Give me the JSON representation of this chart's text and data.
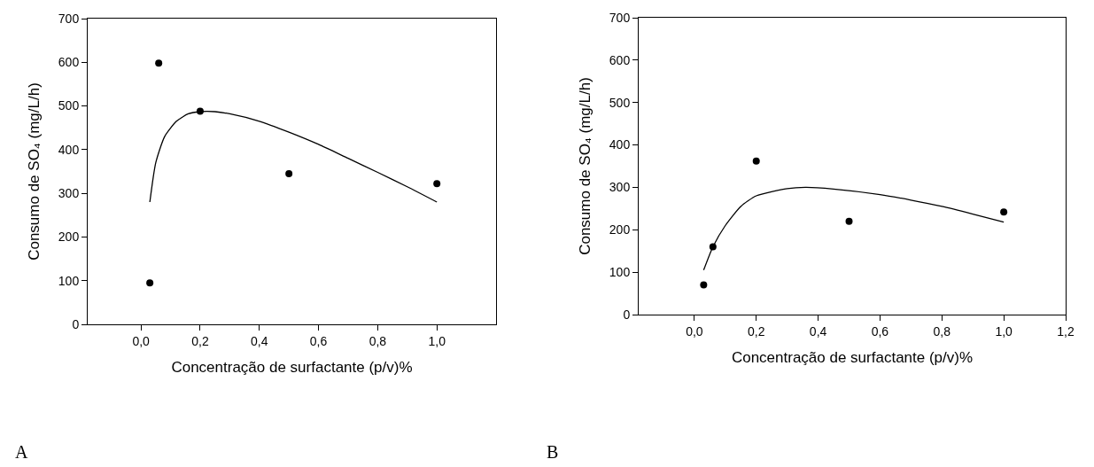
{
  "chart_data": [
    {
      "type": "scatter",
      "xlabel": "Concentração de surfactante (p/v)%",
      "ylabel": "Consumo de SO₄ (mg/L/h)",
      "xlim": [
        -0.18,
        1.2
      ],
      "xticks": [
        {
          "value": 0,
          "label": "0,0"
        },
        {
          "value": 0.2,
          "label": "0,2"
        },
        {
          "value": 0.4,
          "label": "0,4"
        },
        {
          "value": 0.6,
          "label": "0,6"
        },
        {
          "value": 0.8,
          "label": "0,8"
        },
        {
          "value": 1.0,
          "label": "1,0"
        }
      ],
      "ylim": [
        0,
        700
      ],
      "yticks": [
        0,
        100,
        200,
        300,
        400,
        500,
        600,
        700
      ],
      "grid": false,
      "legend": false,
      "annotations": [
        "A"
      ],
      "series": [
        {
          "color": "#000000",
          "marker": "circle",
          "x": [
            0.03,
            0.06,
            0.2,
            0.5,
            1.0
          ],
          "values": [
            95,
            598,
            488,
            345,
            322
          ]
        },
        {
          "type": "line",
          "color": "#000000",
          "marker": "none",
          "line_style": "solid",
          "x": [
            0.03,
            0.05,
            0.08,
            0.12,
            0.16,
            0.2,
            0.25,
            0.3,
            0.4,
            0.5,
            0.6,
            0.7,
            0.8,
            0.9,
            1.0
          ],
          "values": [
            280,
            370,
            430,
            465,
            482,
            487,
            487,
            482,
            465,
            440,
            412,
            380,
            348,
            315,
            280
          ]
        }
      ]
    },
    {
      "type": "scatter",
      "xlabel": "Concentração de surfactante (p/v)%",
      "ylabel": "Consumo de SO₄ (mg/L/h)",
      "xlim": [
        -0.18,
        1.2
      ],
      "xticks": [
        {
          "value": 0,
          "label": "0,0"
        },
        {
          "value": 0.2,
          "label": "0,2"
        },
        {
          "value": 0.4,
          "label": "0,4"
        },
        {
          "value": 0.6,
          "label": "0,6"
        },
        {
          "value": 0.8,
          "label": "0,8"
        },
        {
          "value": 1.0,
          "label": "1,0"
        },
        {
          "value": 1.2,
          "label": "1,2"
        }
      ],
      "ylim": [
        0,
        700
      ],
      "yticks": [
        0,
        100,
        200,
        300,
        400,
        500,
        600,
        700
      ],
      "grid": false,
      "legend": false,
      "annotations": [
        "B"
      ],
      "series": [
        {
          "color": "#000000",
          "marker": "circle",
          "x": [
            0.03,
            0.06,
            0.2,
            0.5,
            1.0
          ],
          "values": [
            70,
            160,
            362,
            220,
            242
          ]
        },
        {
          "type": "line",
          "color": "#000000",
          "marker": "none",
          "line_style": "solid",
          "x": [
            0.03,
            0.06,
            0.1,
            0.15,
            0.2,
            0.3,
            0.36,
            0.45,
            0.6,
            0.7,
            0.8,
            0.9,
            1.0
          ],
          "values": [
            105,
            160,
            210,
            255,
            280,
            297,
            300,
            296,
            283,
            270,
            255,
            237,
            218
          ]
        }
      ]
    }
  ]
}
